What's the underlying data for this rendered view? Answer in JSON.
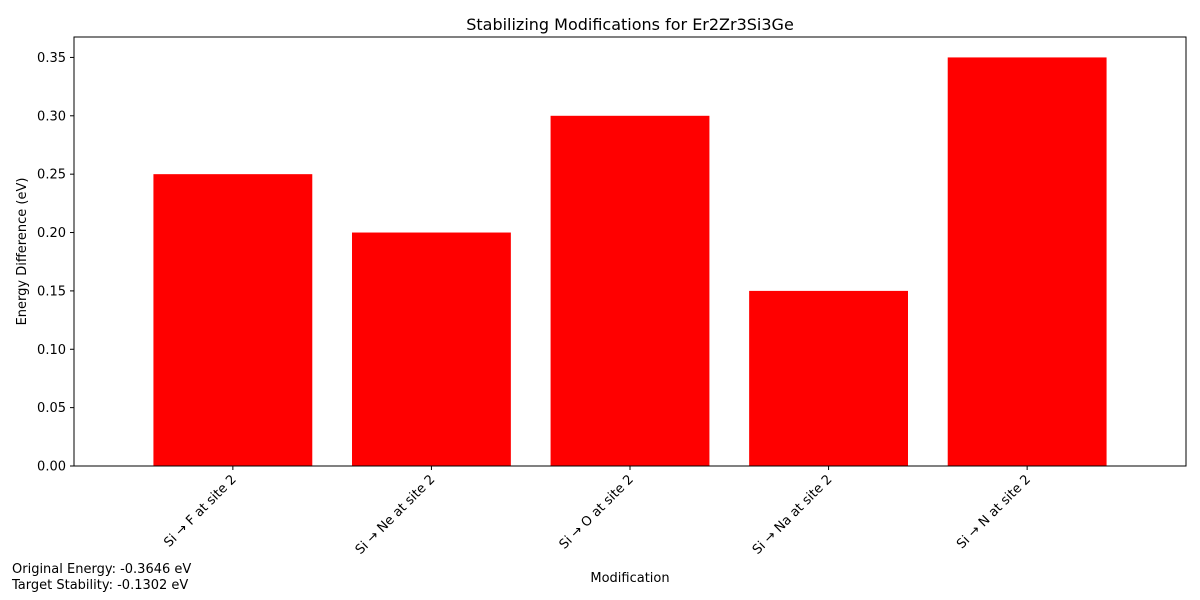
{
  "chart_data": {
    "type": "bar",
    "title": "Stabilizing Modifications for Er2Zr3Si3Ge",
    "xlabel": "Modification",
    "ylabel": "Energy Difference (eV)",
    "categories": [
      "Si → F at site 2",
      "Si → Ne at site 2",
      "Si → O at site 2",
      "Si → Na at site 2",
      "Si → N at site 2"
    ],
    "values": [
      0.25,
      0.2,
      0.3,
      0.15,
      0.35
    ],
    "ylim": [
      0,
      0.3675
    ],
    "yticks": [
      "0.00",
      "0.05",
      "0.10",
      "0.15",
      "0.20",
      "0.25",
      "0.30",
      "0.35"
    ],
    "bar_color": "#ff0000",
    "grid": false,
    "legend": "none"
  },
  "annotations": {
    "original_energy": "Original Energy: -0.3646 eV",
    "target_stability": "Target Stability: -0.1302 eV"
  }
}
